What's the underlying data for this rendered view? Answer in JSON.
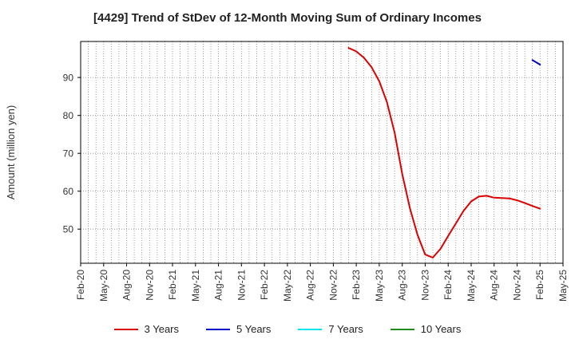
{
  "chart_data": {
    "type": "line",
    "title": "[4429]  Trend of StDev of 12-Month Moving Sum of Ordinary Incomes",
    "xlabel": "",
    "ylabel": "Amount (million yen)",
    "xlim": [
      "2020-02",
      "2025-05"
    ],
    "ylim": [
      41,
      99.5
    ],
    "yticks": [
      50,
      60,
      70,
      80,
      90
    ],
    "xticks": [
      "Feb-20",
      "May-20",
      "Aug-20",
      "Nov-20",
      "Feb-21",
      "May-21",
      "Aug-21",
      "Nov-21",
      "Feb-22",
      "May-22",
      "Aug-22",
      "Nov-22",
      "Feb-23",
      "May-23",
      "Aug-23",
      "Nov-23",
      "Feb-24",
      "May-24",
      "Aug-24",
      "Nov-24",
      "Feb-25",
      "May-25"
    ],
    "grid": true,
    "legend_position": "bottom",
    "series": [
      {
        "name": "3 Years",
        "color": "#dd0000",
        "points": [
          [
            "2023-01",
            97.8
          ],
          [
            "2023-02",
            96.9
          ],
          [
            "2023-03",
            95.2
          ],
          [
            "2023-04",
            92.7
          ],
          [
            "2023-05",
            89.0
          ],
          [
            "2023-06",
            83.5
          ],
          [
            "2023-07",
            75.5
          ],
          [
            "2023-08",
            64.5
          ],
          [
            "2023-09",
            55.5
          ],
          [
            "2023-10",
            48.5
          ],
          [
            "2023-11",
            43.3
          ],
          [
            "2023-12",
            42.5
          ],
          [
            "2024-01",
            44.8
          ],
          [
            "2024-02",
            48.2
          ],
          [
            "2024-03",
            51.5
          ],
          [
            "2024-04",
            54.8
          ],
          [
            "2024-05",
            57.3
          ],
          [
            "2024-06",
            58.6
          ],
          [
            "2024-07",
            58.8
          ],
          [
            "2024-08",
            58.3
          ],
          [
            "2024-09",
            58.2
          ],
          [
            "2024-10",
            58.1
          ],
          [
            "2024-11",
            57.6
          ],
          [
            "2024-12",
            56.9
          ],
          [
            "2025-01",
            56.1
          ],
          [
            "2025-02",
            55.4
          ]
        ]
      },
      {
        "name": "5 Years",
        "color": "#0000cc",
        "points": [
          [
            "2025-01",
            94.6
          ],
          [
            "2025-02",
            93.4
          ]
        ]
      },
      {
        "name": "7 Years",
        "color": "#00e5ee",
        "points": []
      },
      {
        "name": "10 Years",
        "color": "#228b22",
        "points": []
      }
    ]
  }
}
